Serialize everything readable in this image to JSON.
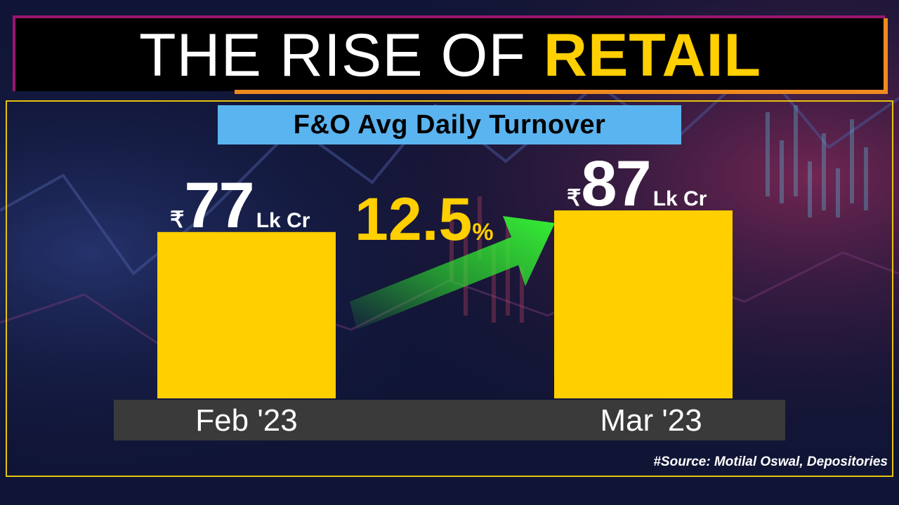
{
  "title": {
    "plain": "THE RISE OF ",
    "accent": "RETAIL"
  },
  "subtitle": "F&O Avg Daily Turnover",
  "change": {
    "value": "12.5",
    "symbol": "%"
  },
  "source": "#Source: Motilal Oswal, Depositories",
  "colors": {
    "bar": "#ffcf00",
    "title_accent": "#ffcf00",
    "subtitle_bg": "#5ab4f0",
    "arrow": "#2ee62e",
    "frame": "#e8c20c"
  },
  "icons": {
    "arrow": "up-right-arrow-icon"
  },
  "chart_data": {
    "type": "bar",
    "title": "F&O Avg Daily Turnover",
    "categories": [
      "Feb '23",
      "Mar '23"
    ],
    "series": [
      {
        "values": [
          77,
          87
        ]
      }
    ],
    "labels": [
      {
        "currency": "₹",
        "value": "77",
        "unit": "Lk Cr"
      },
      {
        "currency": "₹",
        "value": "87",
        "unit": "Lk Cr"
      }
    ],
    "unit": "Lk Cr",
    "ylim": [
      0,
      87
    ],
    "grid": false,
    "legend": "none"
  }
}
